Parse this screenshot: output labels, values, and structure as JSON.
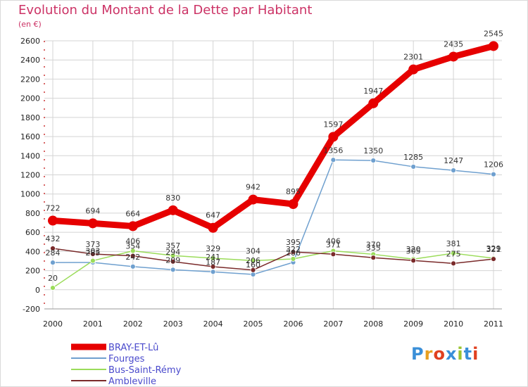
{
  "header": {
    "title": "Evolution du Montant de la Dette par Habitant",
    "unit": "(en €)"
  },
  "logo": {
    "letters": [
      "P",
      "r",
      "o",
      "x",
      "i",
      "t",
      "i"
    ],
    "colors": [
      "#3a8fd8",
      "#e8a020",
      "#e04020",
      "#3a8fd8",
      "#9ac431",
      "#3a8fd8",
      "#e04020"
    ]
  },
  "chart_data": {
    "type": "line",
    "title": "Evolution du Montant de la Dette par Habitant",
    "subtitle": "(en €)",
    "xlabel": "",
    "ylabel": "",
    "categories": [
      "2000",
      "2001",
      "2002",
      "2003",
      "2004",
      "2005",
      "2006",
      "2007",
      "2008",
      "2009",
      "2010",
      "2011"
    ],
    "ylim": [
      -200,
      2600
    ],
    "yticks": [
      -200,
      0,
      200,
      400,
      600,
      800,
      1000,
      1200,
      1400,
      1600,
      1800,
      2000,
      2200,
      2400,
      2600
    ],
    "grid": true,
    "legend_position": "bottom-left",
    "series": [
      {
        "name": "BRAY-ET-Lû",
        "color": "#e60000",
        "values": [
          722,
          694,
          664,
          830,
          647,
          942,
          895,
          1597,
          1947,
          2301,
          2435,
          2545
        ],
        "labels": [
          "722",
          "694",
          "664",
          "830",
          "647",
          "942",
          "895",
          "1597",
          "1947",
          "2301",
          "2435",
          "2545"
        ],
        "emphasis": true
      },
      {
        "name": "Fourges",
        "color": "#6fa0cf",
        "values": [
          284,
          285,
          242,
          209,
          187,
          160,
          286,
          1356,
          1350,
          1285,
          1247,
          1206
        ],
        "labels": [
          "284",
          "285",
          "242",
          "209",
          "187",
          "160",
          "286",
          "1356",
          "1350",
          "1285",
          "1247",
          "1206"
        ]
      },
      {
        "name": "Bus-Saint-Rémy",
        "color": "#9bdc5a",
        "values": [
          20,
          303,
          406,
          357,
          329,
          304,
          322,
          406,
          370,
          320,
          381,
          329
        ],
        "labels": [
          "20",
          "303",
          "406",
          "357",
          "329",
          "304",
          "322",
          "406",
          "370",
          "320",
          "381",
          "329"
        ]
      },
      {
        "name": "Ambleville",
        "color": "#7a2a2a",
        "values": [
          432,
          373,
          354,
          294,
          241,
          206,
          395,
          371,
          335,
          305,
          275,
          321
        ],
        "labels": [
          "432",
          "373",
          "354",
          "294",
          "241",
          "206",
          "395",
          "371",
          "335",
          "305",
          "275",
          "321"
        ]
      }
    ]
  }
}
